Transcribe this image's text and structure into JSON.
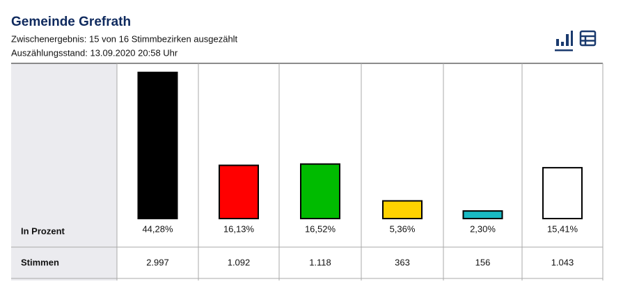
{
  "header": {
    "title": "Gemeinde Grefrath",
    "lines": [
      "Zwischenergebnis: 15 von 16 Stimmbezirken ausgezählt",
      "Auszählungsstand: 13.09.2020 20:58 Uhr"
    ]
  },
  "chart_data": {
    "type": "bar",
    "row_label": "In Prozent",
    "values": [
      44.28,
      16.13,
      16.52,
      5.36,
      2.3,
      15.41
    ],
    "value_labels": [
      "44,28%",
      "16,13%",
      "16,52%",
      "5,36%",
      "2,30%",
      "15,41%"
    ],
    "colors": [
      "#000000",
      "#ff0000",
      "#00bb00",
      "#ffd200",
      "#19b9c3",
      "#ffffff"
    ]
  },
  "table": {
    "label": "Stimmen",
    "values": [
      "2.997",
      "1.092",
      "1.118",
      "363",
      "156",
      "1.043"
    ]
  }
}
